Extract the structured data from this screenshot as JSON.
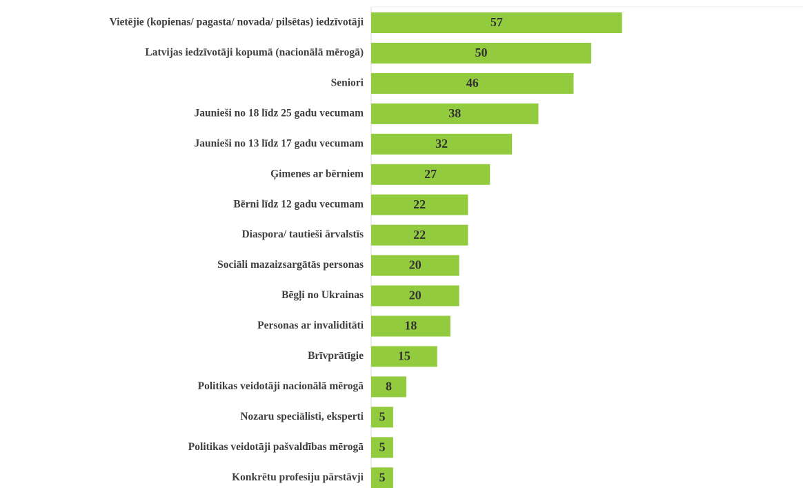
{
  "chart_data": {
    "type": "bar",
    "orientation": "horizontal",
    "color": "#92cb3e",
    "categories": [
      "Vietējie (kopienas/ pagasta/ novada/ pilsētas) iedzīvotāji",
      "Latvijas iedzīvotāji kopumā (nacionālā mērogā)",
      "Seniori",
      "Jaunieši no 18 līdz 25 gadu vecumam",
      "Jaunieši no 13 līdz 17 gadu vecumam",
      "Ģimenes ar bērniem",
      "Bērni līdz 12 gadu vecumam",
      "Diaspora/ tautieši ārvalstīs",
      "Sociāli mazaizsargātās personas",
      "Bēgļi no Ukrainas",
      "Personas ar invaliditāti",
      "Brīvprātīgie",
      "Politikas veidotāji nacionālā mērogā",
      "Nozaru speciālisti, eksperti",
      "Politikas veidotāji pašvaldības mērogā",
      "Konkrētu profesiju pārstāvji"
    ],
    "values": [
      57,
      50,
      46,
      38,
      32,
      27,
      22,
      22,
      20,
      20,
      18,
      15,
      8,
      5,
      5,
      5
    ]
  }
}
